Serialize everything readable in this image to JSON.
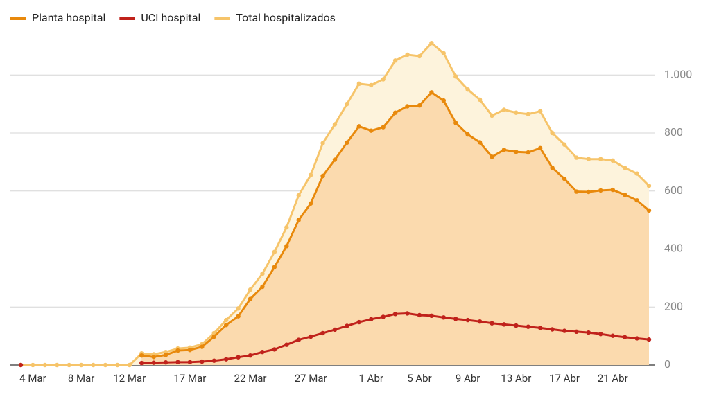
{
  "chart_data": {
    "type": "area",
    "categories": [
      null,
      "4 Mar",
      null,
      null,
      null,
      "8 Mar",
      null,
      null,
      null,
      "12 Mar",
      null,
      null,
      null,
      null,
      "17 Mar",
      null,
      null,
      null,
      null,
      "22 Mar",
      null,
      null,
      null,
      null,
      "27 Mar",
      null,
      null,
      null,
      null,
      "1 Abr",
      null,
      null,
      null,
      "5 Abr",
      null,
      null,
      null,
      "9 Abr",
      null,
      null,
      null,
      "13 Abr",
      null,
      null,
      null,
      "17 Abr",
      null,
      null,
      null,
      "21 Abr",
      null,
      null,
      null
    ],
    "series": [
      {
        "name": "Planta hospital",
        "color": "#e8890c",
        "area_color": "#fbdaae",
        "values": [
          null,
          null,
          null,
          null,
          null,
          null,
          null,
          null,
          null,
          null,
          33,
          28,
          35,
          50,
          52,
          63,
          98,
          138,
          168,
          228,
          270,
          338,
          410,
          500,
          557,
          652,
          708,
          767,
          823,
          808,
          820,
          870,
          892,
          895,
          940,
          912,
          835,
          795,
          768,
          718,
          742,
          735,
          733,
          748,
          680,
          642,
          598,
          597,
          602,
          604,
          587,
          568,
          533
        ]
      },
      {
        "name": "UCI hospital",
        "color": "#c0221b",
        "values": [
          0,
          null,
          null,
          null,
          null,
          null,
          null,
          null,
          null,
          null,
          7,
          8,
          9,
          10,
          10,
          12,
          15,
          20,
          27,
          33,
          45,
          54,
          70,
          87,
          98,
          110,
          122,
          135,
          148,
          158,
          166,
          176,
          178,
          172,
          170,
          164,
          159,
          155,
          150,
          144,
          140,
          136,
          132,
          128,
          123,
          118,
          115,
          112,
          107,
          101,
          96,
          92,
          88
        ]
      },
      {
        "name": "Total hospitalizados",
        "color": "#f6c46a",
        "area_color": "#fdf3dc",
        "values": [
          0,
          0,
          0,
          0,
          0,
          0,
          0,
          0,
          0,
          0,
          40,
          37,
          45,
          57,
          60,
          72,
          110,
          155,
          195,
          260,
          315,
          390,
          475,
          585,
          655,
          765,
          830,
          900,
          970,
          965,
          985,
          1050,
          1070,
          1065,
          1110,
          1075,
          995,
          950,
          915,
          860,
          880,
          870,
          865,
          875,
          800,
          760,
          715,
          710,
          710,
          705,
          680,
          660,
          618
        ]
      }
    ],
    "ylim": [
      0,
      1120
    ],
    "yticks": [
      0,
      200,
      400,
      600,
      800,
      {
        "value": 1000,
        "label": "1.000"
      }
    ],
    "grid": true,
    "legend": "top"
  }
}
